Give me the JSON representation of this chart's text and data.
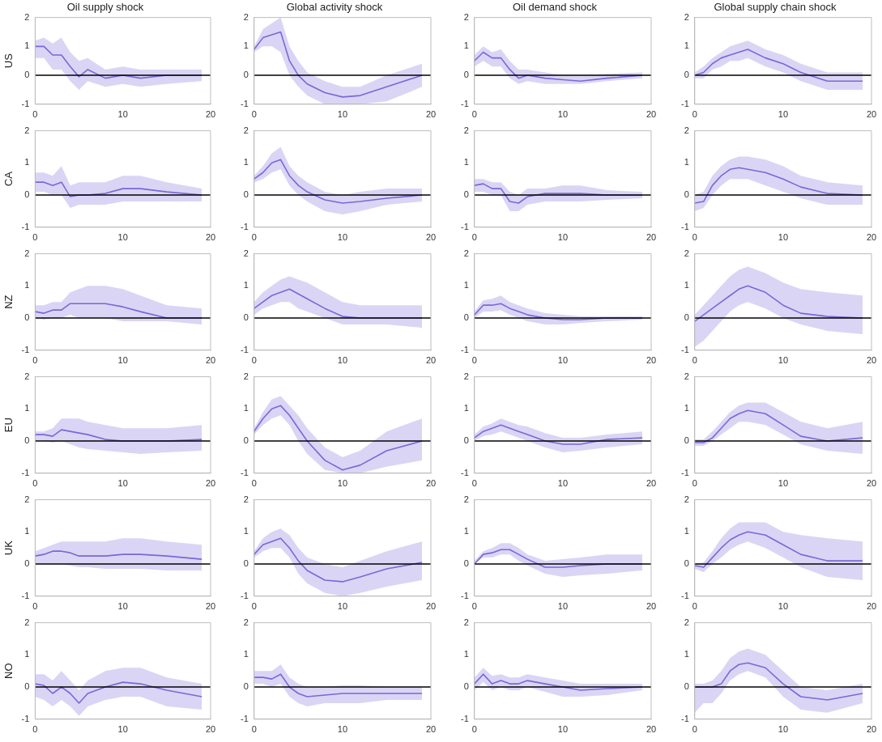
{
  "chart_data": [
    {
      "type": "line",
      "title": "Oil supply shock",
      "ylabel": "US",
      "x": [
        0,
        1,
        2,
        3,
        4,
        5,
        6,
        8,
        10,
        12,
        15,
        19
      ],
      "xlim": [
        0,
        20
      ],
      "ylim": [
        -1,
        2
      ],
      "xticks": [
        0,
        10,
        20
      ],
      "yticks": [
        -1,
        0,
        1,
        2
      ],
      "grid": false,
      "legend": false,
      "marker": "none",
      "ref_lines": [
        {
          "axis": "y",
          "value": 0,
          "color": "#000000"
        }
      ],
      "series": [
        {
          "color": "#7b68d8",
          "values": [
            1,
            1,
            0.7,
            0.7,
            0.3,
            -0.05,
            0.2,
            -0.1,
            0,
            -0.1,
            0,
            0
          ],
          "lower": [
            0.6,
            0.6,
            0.2,
            0.2,
            -0.2,
            -0.5,
            -0.2,
            -0.4,
            -0.3,
            -0.4,
            -0.3,
            -0.2
          ],
          "upper": [
            1.2,
            1.3,
            1.1,
            1.3,
            0.8,
            0.5,
            0.6,
            0.2,
            0.3,
            0.2,
            0.2,
            0.2
          ]
        }
      ]
    },
    {
      "type": "line",
      "title": "Global activity shock",
      "x": [
        0,
        1,
        2,
        3,
        4,
        5,
        6,
        8,
        10,
        12,
        15,
        19
      ],
      "xlim": [
        0,
        20
      ],
      "ylim": [
        -1,
        2
      ],
      "xticks": [
        0,
        10,
        20
      ],
      "yticks": [
        -1,
        0,
        1,
        2
      ],
      "grid": false,
      "legend": false,
      "marker": "none",
      "ref_lines": [
        {
          "axis": "y",
          "value": 0,
          "color": "#000000"
        }
      ],
      "series": [
        {
          "color": "#7b68d8",
          "values": [
            0.9,
            1.3,
            1.4,
            1.5,
            0.5,
            0,
            -0.3,
            -0.6,
            -0.75,
            -0.7,
            -0.4,
            0
          ],
          "lower": [
            0.8,
            1,
            1,
            0.8,
            0,
            -0.4,
            -0.7,
            -1,
            -1,
            -1,
            -0.9,
            -0.4
          ],
          "upper": [
            1,
            1.6,
            1.8,
            2,
            1,
            0.5,
            0.1,
            -0.2,
            -0.4,
            -0.4,
            0,
            0.4
          ]
        }
      ]
    },
    {
      "type": "line",
      "title": "Oil demand shock",
      "x": [
        0,
        1,
        2,
        3,
        4,
        5,
        6,
        8,
        10,
        12,
        15,
        19
      ],
      "xlim": [
        0,
        20
      ],
      "ylim": [
        -1,
        2
      ],
      "xticks": [
        0,
        10,
        20
      ],
      "yticks": [
        -1,
        0,
        1,
        2
      ],
      "grid": false,
      "legend": false,
      "marker": "none",
      "ref_lines": [
        {
          "axis": "y",
          "value": 0,
          "color": "#000000"
        }
      ],
      "series": [
        {
          "color": "#7b68d8",
          "values": [
            0.5,
            0.8,
            0.6,
            0.6,
            0.2,
            -0.1,
            0,
            -0.1,
            -0.15,
            -0.2,
            -0.1,
            0
          ],
          "lower": [
            0.3,
            0.5,
            0.3,
            0.3,
            -0.1,
            -0.3,
            -0.2,
            -0.3,
            -0.3,
            -0.3,
            -0.2,
            -0.1
          ],
          "upper": [
            0.7,
            1,
            0.8,
            0.9,
            0.5,
            0.2,
            0.2,
            0.1,
            0,
            0,
            0.05,
            0.1
          ]
        }
      ]
    },
    {
      "type": "line",
      "title": "Global supply chain shock",
      "x": [
        0,
        1,
        2,
        3,
        4,
        5,
        6,
        8,
        10,
        12,
        15,
        19
      ],
      "xlim": [
        0,
        20
      ],
      "ylim": [
        -1,
        2
      ],
      "xticks": [
        0,
        10,
        20
      ],
      "yticks": [
        -1,
        0,
        1,
        2
      ],
      "grid": false,
      "legend": false,
      "marker": "none",
      "ref_lines": [
        {
          "axis": "y",
          "value": 0,
          "color": "#000000"
        }
      ],
      "series": [
        {
          "color": "#7b68d8",
          "values": [
            0,
            0.1,
            0.4,
            0.6,
            0.7,
            0.8,
            0.9,
            0.6,
            0.4,
            0.1,
            -0.2,
            -0.2
          ],
          "lower": [
            -0.1,
            -0.1,
            0.2,
            0.3,
            0.5,
            0.5,
            0.6,
            0.3,
            0.1,
            -0.2,
            -0.5,
            -0.5
          ],
          "upper": [
            0.1,
            0.3,
            0.6,
            0.8,
            1,
            1.1,
            1.2,
            0.9,
            0.7,
            0.4,
            0.1,
            0.1
          ]
        }
      ]
    },
    {
      "type": "line",
      "ylabel": "CA",
      "x": [
        0,
        1,
        2,
        3,
        4,
        5,
        6,
        8,
        10,
        12,
        15,
        19
      ],
      "xlim": [
        0,
        20
      ],
      "ylim": [
        -1,
        2
      ],
      "xticks": [
        0,
        10,
        20
      ],
      "yticks": [
        -1,
        0,
        1,
        2
      ],
      "grid": false,
      "legend": false,
      "marker": "none",
      "ref_lines": [
        {
          "axis": "y",
          "value": 0,
          "color": "#000000"
        }
      ],
      "series": [
        {
          "color": "#7b68d8",
          "values": [
            0.4,
            0.4,
            0.3,
            0.4,
            -0.05,
            0,
            0,
            0.05,
            0.2,
            0.2,
            0.1,
            0
          ],
          "lower": [
            0.1,
            0.1,
            0,
            0,
            -0.4,
            -0.3,
            -0.3,
            -0.3,
            -0.2,
            -0.2,
            -0.2,
            -0.2
          ],
          "upper": [
            0.7,
            0.7,
            0.6,
            0.9,
            0.3,
            0.4,
            0.4,
            0.4,
            0.6,
            0.6,
            0.4,
            0.2
          ]
        }
      ]
    },
    {
      "type": "line",
      "x": [
        0,
        1,
        2,
        3,
        4,
        5,
        6,
        8,
        10,
        12,
        15,
        19
      ],
      "xlim": [
        0,
        20
      ],
      "ylim": [
        -1,
        2
      ],
      "xticks": [
        0,
        10,
        20
      ],
      "yticks": [
        -1,
        0,
        1,
        2
      ],
      "grid": false,
      "legend": false,
      "marker": "none",
      "ref_lines": [
        {
          "axis": "y",
          "value": 0,
          "color": "#000000"
        }
      ],
      "series": [
        {
          "color": "#7b68d8",
          "values": [
            0.5,
            0.7,
            1,
            1.1,
            0.6,
            0.3,
            0.1,
            -0.15,
            -0.25,
            -0.2,
            -0.1,
            0
          ],
          "lower": [
            0.4,
            0.5,
            0.7,
            0.8,
            0.3,
            0,
            -0.2,
            -0.5,
            -0.6,
            -0.5,
            -0.3,
            -0.2
          ],
          "upper": [
            0.6,
            0.9,
            1.3,
            1.5,
            0.9,
            0.6,
            0.4,
            0.1,
            0,
            0.1,
            0.2,
            0.2
          ]
        }
      ]
    },
    {
      "type": "line",
      "x": [
        0,
        1,
        2,
        3,
        4,
        5,
        6,
        8,
        10,
        12,
        15,
        19
      ],
      "xlim": [
        0,
        20
      ],
      "ylim": [
        -1,
        2
      ],
      "xticks": [
        0,
        10,
        20
      ],
      "yticks": [
        -1,
        0,
        1,
        2
      ],
      "grid": false,
      "legend": false,
      "marker": "none",
      "ref_lines": [
        {
          "axis": "y",
          "value": 0,
          "color": "#000000"
        }
      ],
      "series": [
        {
          "color": "#7b68d8",
          "values": [
            0.3,
            0.35,
            0.2,
            0.2,
            -0.2,
            -0.25,
            -0.05,
            0.05,
            0.05,
            0.05,
            0,
            0
          ],
          "lower": [
            0.1,
            0.1,
            0,
            0,
            -0.5,
            -0.5,
            -0.3,
            -0.2,
            -0.2,
            -0.2,
            -0.15,
            -0.1
          ],
          "upper": [
            0.5,
            0.5,
            0.4,
            0.4,
            0.1,
            0,
            0.2,
            0.2,
            0.3,
            0.3,
            0.15,
            0.1
          ]
        }
      ]
    },
    {
      "type": "line",
      "x": [
        0,
        1,
        2,
        3,
        4,
        5,
        6,
        8,
        10,
        12,
        15,
        19
      ],
      "xlim": [
        0,
        20
      ],
      "ylim": [
        -1,
        2
      ],
      "xticks": [
        0,
        10,
        20
      ],
      "yticks": [
        -1,
        0,
        1,
        2
      ],
      "grid": false,
      "legend": false,
      "marker": "none",
      "ref_lines": [
        {
          "axis": "y",
          "value": 0,
          "color": "#000000"
        }
      ],
      "series": [
        {
          "color": "#7b68d8",
          "values": [
            -0.25,
            -0.2,
            0.3,
            0.6,
            0.8,
            0.85,
            0.8,
            0.7,
            0.5,
            0.25,
            0.05,
            0
          ],
          "lower": [
            -0.5,
            -0.4,
            0,
            0.3,
            0.5,
            0.5,
            0.5,
            0.3,
            0.1,
            -0.1,
            -0.3,
            -0.3
          ],
          "upper": [
            0,
            0.1,
            0.6,
            0.9,
            1.1,
            1.2,
            1.2,
            1.1,
            0.9,
            0.6,
            0.4,
            0.3
          ]
        }
      ]
    },
    {
      "type": "line",
      "ylabel": "NZ",
      "x": [
        0,
        1,
        2,
        3,
        4,
        5,
        6,
        8,
        10,
        12,
        15,
        19
      ],
      "xlim": [
        0,
        20
      ],
      "ylim": [
        -1,
        2
      ],
      "xticks": [
        0,
        10,
        20
      ],
      "yticks": [
        -1,
        0,
        1,
        2
      ],
      "grid": false,
      "legend": false,
      "marker": "none",
      "ref_lines": [
        {
          "axis": "y",
          "value": 0,
          "color": "#000000"
        }
      ],
      "series": [
        {
          "color": "#7b68d8",
          "values": [
            0.2,
            0.15,
            0.25,
            0.25,
            0.45,
            0.45,
            0.45,
            0.45,
            0.35,
            0.2,
            0,
            0
          ],
          "lower": [
            0,
            -0.05,
            0,
            0,
            0.1,
            0,
            0,
            0,
            -0.1,
            -0.1,
            -0.1,
            -0.2
          ],
          "upper": [
            0.4,
            0.4,
            0.5,
            0.5,
            0.8,
            0.9,
            1,
            1,
            0.9,
            0.7,
            0.4,
            0.3
          ]
        }
      ]
    },
    {
      "type": "line",
      "x": [
        0,
        1,
        2,
        3,
        4,
        5,
        6,
        8,
        10,
        12,
        15,
        19
      ],
      "xlim": [
        0,
        20
      ],
      "ylim": [
        -1,
        2
      ],
      "xticks": [
        0,
        10,
        20
      ],
      "yticks": [
        -1,
        0,
        1,
        2
      ],
      "grid": false,
      "legend": false,
      "marker": "none",
      "ref_lines": [
        {
          "axis": "y",
          "value": 0,
          "color": "#000000"
        }
      ],
      "series": [
        {
          "color": "#7b68d8",
          "values": [
            0.3,
            0.5,
            0.7,
            0.8,
            0.9,
            0.75,
            0.6,
            0.3,
            0.05,
            0,
            0,
            0
          ],
          "lower": [
            0.1,
            0.3,
            0.4,
            0.5,
            0.5,
            0.3,
            0.2,
            0,
            -0.2,
            -0.2,
            -0.2,
            -0.3
          ],
          "upper": [
            0.5,
            0.8,
            1,
            1.2,
            1.3,
            1.2,
            1.1,
            0.8,
            0.5,
            0.4,
            0.4,
            0.4
          ]
        }
      ]
    },
    {
      "type": "line",
      "x": [
        0,
        1,
        2,
        3,
        4,
        5,
        6,
        8,
        10,
        12,
        15,
        19
      ],
      "xlim": [
        0,
        20
      ],
      "ylim": [
        -1,
        2
      ],
      "xticks": [
        0,
        10,
        20
      ],
      "yticks": [
        -1,
        0,
        1,
        2
      ],
      "grid": false,
      "legend": false,
      "marker": "none",
      "ref_lines": [
        {
          "axis": "y",
          "value": 0,
          "color": "#000000"
        }
      ],
      "series": [
        {
          "color": "#7b68d8",
          "values": [
            0.1,
            0.4,
            0.4,
            0.45,
            0.3,
            0.2,
            0.1,
            0,
            -0.05,
            -0.05,
            0,
            0
          ],
          "lower": [
            0,
            0.2,
            0.2,
            0.25,
            0.1,
            0,
            -0.1,
            -0.2,
            -0.2,
            -0.15,
            -0.1,
            -0.05
          ],
          "upper": [
            0.2,
            0.55,
            0.6,
            0.7,
            0.5,
            0.4,
            0.3,
            0.15,
            0.1,
            0.05,
            0.05,
            0.05
          ]
        }
      ]
    },
    {
      "type": "line",
      "x": [
        0,
        1,
        2,
        3,
        4,
        5,
        6,
        8,
        10,
        12,
        15,
        19
      ],
      "xlim": [
        0,
        20
      ],
      "ylim": [
        -1,
        2
      ],
      "xticks": [
        0,
        10,
        20
      ],
      "yticks": [
        -1,
        0,
        1,
        2
      ],
      "grid": false,
      "legend": false,
      "marker": "none",
      "ref_lines": [
        {
          "axis": "y",
          "value": 0,
          "color": "#000000"
        }
      ],
      "series": [
        {
          "color": "#7b68d8",
          "values": [
            -0.1,
            0.1,
            0.3,
            0.5,
            0.7,
            0.9,
            1,
            0.8,
            0.4,
            0.15,
            0.05,
            0
          ],
          "lower": [
            -0.9,
            -0.7,
            -0.4,
            -0.1,
            0.2,
            0.4,
            0.5,
            0.3,
            0,
            -0.2,
            -0.4,
            -0.5
          ],
          "upper": [
            0.1,
            0.4,
            0.7,
            1,
            1.3,
            1.5,
            1.6,
            1.4,
            1.1,
            0.9,
            0.8,
            0.7
          ]
        }
      ]
    },
    {
      "type": "line",
      "ylabel": "EU",
      "x": [
        0,
        1,
        2,
        3,
        4,
        5,
        6,
        8,
        10,
        12,
        15,
        19
      ],
      "xlim": [
        0,
        20
      ],
      "ylim": [
        -1,
        2
      ],
      "xticks": [
        0,
        10,
        20
      ],
      "yticks": [
        -1,
        0,
        1,
        2
      ],
      "grid": false,
      "legend": false,
      "marker": "none",
      "ref_lines": [
        {
          "axis": "y",
          "value": 0,
          "color": "#000000"
        }
      ],
      "series": [
        {
          "color": "#7b68d8",
          "values": [
            0.2,
            0.2,
            0.15,
            0.35,
            0.3,
            0.25,
            0.2,
            0.05,
            0,
            0,
            0,
            0.05
          ],
          "lower": [
            0,
            0,
            -0.05,
            0,
            -0.1,
            -0.2,
            -0.25,
            -0.3,
            -0.35,
            -0.4,
            -0.35,
            -0.3
          ],
          "upper": [
            0.3,
            0.3,
            0.4,
            0.7,
            0.7,
            0.7,
            0.6,
            0.5,
            0.4,
            0.4,
            0.4,
            0.5
          ]
        }
      ]
    },
    {
      "type": "line",
      "x": [
        0,
        1,
        2,
        3,
        4,
        5,
        6,
        8,
        10,
        12,
        15,
        19
      ],
      "xlim": [
        0,
        20
      ],
      "ylim": [
        -1,
        2
      ],
      "xticks": [
        0,
        10,
        20
      ],
      "yticks": [
        -1,
        0,
        1,
        2
      ],
      "grid": false,
      "legend": false,
      "marker": "none",
      "ref_lines": [
        {
          "axis": "y",
          "value": 0,
          "color": "#000000"
        }
      ],
      "series": [
        {
          "color": "#7b68d8",
          "values": [
            0.3,
            0.7,
            1,
            1.1,
            0.8,
            0.4,
            0,
            -0.6,
            -0.9,
            -0.75,
            -0.3,
            0
          ],
          "lower": [
            0.2,
            0.5,
            0.7,
            0.8,
            0.5,
            0,
            -0.4,
            -0.9,
            -1,
            -1,
            -0.8,
            -0.6
          ],
          "upper": [
            0.4,
            0.9,
            1.3,
            1.4,
            1.1,
            0.8,
            0.4,
            -0.2,
            -0.5,
            -0.3,
            0.3,
            0.7
          ]
        }
      ]
    },
    {
      "type": "line",
      "x": [
        0,
        1,
        2,
        3,
        4,
        5,
        6,
        8,
        10,
        12,
        15,
        19
      ],
      "xlim": [
        0,
        20
      ],
      "ylim": [
        -1,
        2
      ],
      "xticks": [
        0,
        10,
        20
      ],
      "yticks": [
        -1,
        0,
        1,
        2
      ],
      "grid": false,
      "legend": false,
      "marker": "none",
      "ref_lines": [
        {
          "axis": "y",
          "value": 0,
          "color": "#000000"
        }
      ],
      "series": [
        {
          "color": "#7b68d8",
          "values": [
            0.1,
            0.3,
            0.4,
            0.5,
            0.4,
            0.3,
            0.2,
            0,
            -0.1,
            -0.1,
            0.05,
            0.1
          ],
          "lower": [
            0,
            0.15,
            0.2,
            0.3,
            0.2,
            0.1,
            0,
            -0.2,
            -0.35,
            -0.3,
            -0.2,
            -0.1
          ],
          "upper": [
            0.2,
            0.45,
            0.55,
            0.7,
            0.6,
            0.5,
            0.45,
            0.25,
            0.1,
            0.1,
            0.2,
            0.3
          ]
        }
      ]
    },
    {
      "type": "line",
      "x": [
        0,
        1,
        2,
        3,
        4,
        5,
        6,
        8,
        10,
        12,
        15,
        19
      ],
      "xlim": [
        0,
        20
      ],
      "ylim": [
        -1,
        2
      ],
      "xticks": [
        0,
        10,
        20
      ],
      "yticks": [
        -1,
        0,
        1,
        2
      ],
      "grid": false,
      "legend": false,
      "marker": "none",
      "ref_lines": [
        {
          "axis": "y",
          "value": 0,
          "color": "#000000"
        }
      ],
      "series": [
        {
          "color": "#7b68d8",
          "values": [
            -0.05,
            -0.05,
            0.1,
            0.4,
            0.7,
            0.85,
            0.95,
            0.85,
            0.5,
            0.15,
            0,
            0.1
          ],
          "lower": [
            -0.15,
            -0.15,
            0,
            0.2,
            0.4,
            0.6,
            0.6,
            0.5,
            0.2,
            -0.1,
            -0.3,
            -0.4
          ],
          "upper": [
            0.05,
            0.05,
            0.3,
            0.6,
            0.9,
            1.1,
            1.2,
            1.2,
            0.9,
            0.6,
            0.4,
            0.6
          ]
        }
      ]
    },
    {
      "type": "line",
      "ylabel": "UK",
      "x": [
        0,
        1,
        2,
        3,
        4,
        5,
        6,
        8,
        10,
        12,
        15,
        19
      ],
      "xlim": [
        0,
        20
      ],
      "ylim": [
        -1,
        2
      ],
      "xticks": [
        0,
        10,
        20
      ],
      "yticks": [
        -1,
        0,
        1,
        2
      ],
      "grid": false,
      "legend": false,
      "marker": "none",
      "ref_lines": [
        {
          "axis": "y",
          "value": 0,
          "color": "#000000"
        }
      ],
      "series": [
        {
          "color": "#7b68d8",
          "values": [
            0.25,
            0.3,
            0.4,
            0.4,
            0.35,
            0.25,
            0.25,
            0.25,
            0.3,
            0.3,
            0.25,
            0.15
          ],
          "lower": [
            0,
            0,
            0,
            0,
            -0.05,
            -0.1,
            -0.1,
            -0.15,
            -0.15,
            -0.15,
            -0.2,
            -0.2
          ],
          "upper": [
            0.4,
            0.5,
            0.6,
            0.7,
            0.7,
            0.7,
            0.7,
            0.7,
            0.8,
            0.8,
            0.7,
            0.6
          ]
        }
      ]
    },
    {
      "type": "line",
      "x": [
        0,
        1,
        2,
        3,
        4,
        5,
        6,
        8,
        10,
        12,
        15,
        19
      ],
      "xlim": [
        0,
        20
      ],
      "ylim": [
        -1,
        2
      ],
      "xticks": [
        0,
        10,
        20
      ],
      "yticks": [
        -1,
        0,
        1,
        2
      ],
      "grid": false,
      "legend": false,
      "marker": "none",
      "ref_lines": [
        {
          "axis": "y",
          "value": 0,
          "color": "#000000"
        }
      ],
      "series": [
        {
          "color": "#7b68d8",
          "values": [
            0.3,
            0.6,
            0.7,
            0.8,
            0.5,
            0.1,
            -0.2,
            -0.5,
            -0.55,
            -0.4,
            -0.15,
            0.05
          ],
          "lower": [
            0.2,
            0.4,
            0.5,
            0.5,
            0.2,
            -0.3,
            -0.6,
            -0.9,
            -1,
            -0.9,
            -0.7,
            -0.5
          ],
          "upper": [
            0.4,
            0.8,
            1,
            1.1,
            0.9,
            0.5,
            0.2,
            0,
            -0.1,
            0.1,
            0.4,
            0.7
          ]
        }
      ]
    },
    {
      "type": "line",
      "x": [
        0,
        1,
        2,
        3,
        4,
        5,
        6,
        8,
        10,
        12,
        15,
        19
      ],
      "xlim": [
        0,
        20
      ],
      "ylim": [
        -1,
        2
      ],
      "xticks": [
        0,
        10,
        20
      ],
      "yticks": [
        -1,
        0,
        1,
        2
      ],
      "grid": false,
      "legend": false,
      "marker": "none",
      "ref_lines": [
        {
          "axis": "y",
          "value": 0,
          "color": "#000000"
        }
      ],
      "series": [
        {
          "color": "#7b68d8",
          "values": [
            0,
            0.3,
            0.35,
            0.45,
            0.45,
            0.3,
            0.15,
            -0.1,
            -0.1,
            -0.05,
            0,
            0
          ],
          "lower": [
            0,
            0.2,
            0.2,
            0.3,
            0.3,
            0.1,
            -0.05,
            -0.3,
            -0.4,
            -0.35,
            -0.3,
            -0.2
          ],
          "upper": [
            0.1,
            0.4,
            0.5,
            0.65,
            0.65,
            0.5,
            0.3,
            0.1,
            0.15,
            0.2,
            0.3,
            0.3
          ]
        }
      ]
    },
    {
      "type": "line",
      "x": [
        0,
        1,
        2,
        3,
        4,
        5,
        6,
        8,
        10,
        12,
        15,
        19
      ],
      "xlim": [
        0,
        20
      ],
      "ylim": [
        -1,
        2
      ],
      "xticks": [
        0,
        10,
        20
      ],
      "yticks": [
        -1,
        0,
        1,
        2
      ],
      "grid": false,
      "legend": false,
      "marker": "none",
      "ref_lines": [
        {
          "axis": "y",
          "value": 0,
          "color": "#000000"
        }
      ],
      "series": [
        {
          "color": "#7b68d8",
          "values": [
            -0.05,
            -0.1,
            0.2,
            0.5,
            0.75,
            0.9,
            1,
            0.9,
            0.6,
            0.3,
            0.1,
            0.1
          ],
          "lower": [
            -0.15,
            -0.25,
            0,
            0.2,
            0.45,
            0.6,
            0.7,
            0.5,
            0.2,
            -0.1,
            -0.4,
            -0.5
          ],
          "upper": [
            0,
            0.05,
            0.4,
            0.8,
            1.1,
            1.3,
            1.3,
            1.3,
            1,
            0.9,
            0.8,
            0.7
          ]
        }
      ]
    },
    {
      "type": "line",
      "ylabel": "NO",
      "x": [
        0,
        1,
        2,
        3,
        4,
        5,
        6,
        8,
        10,
        12,
        15,
        19
      ],
      "xlim": [
        0,
        20
      ],
      "ylim": [
        -1,
        2
      ],
      "xticks": [
        0,
        10,
        20
      ],
      "yticks": [
        -1,
        0,
        1,
        2
      ],
      "grid": false,
      "legend": false,
      "marker": "none",
      "ref_lines": [
        {
          "axis": "y",
          "value": 0,
          "color": "#000000"
        }
      ],
      "series": [
        {
          "color": "#7b68d8",
          "values": [
            0.1,
            0.05,
            -0.2,
            0,
            -0.2,
            -0.5,
            -0.2,
            0,
            0.15,
            0.1,
            -0.1,
            -0.3
          ],
          "lower": [
            -0.3,
            -0.4,
            -0.6,
            -0.4,
            -0.6,
            -0.9,
            -0.6,
            -0.4,
            -0.3,
            -0.3,
            -0.6,
            -0.7
          ],
          "upper": [
            0.4,
            0.4,
            0.2,
            0.5,
            0.2,
            -0.1,
            0.2,
            0.5,
            0.6,
            0.6,
            0.3,
            0.1
          ]
        }
      ]
    },
    {
      "type": "line",
      "x": [
        0,
        1,
        2,
        3,
        4,
        5,
        6,
        8,
        10,
        12,
        15,
        19
      ],
      "xlim": [
        0,
        20
      ],
      "ylim": [
        -1,
        2
      ],
      "xticks": [
        0,
        10,
        20
      ],
      "yticks": [
        -1,
        0,
        1,
        2
      ],
      "grid": false,
      "legend": false,
      "marker": "none",
      "ref_lines": [
        {
          "axis": "y",
          "value": 0,
          "color": "#000000"
        }
      ],
      "series": [
        {
          "color": "#7b68d8",
          "values": [
            0.3,
            0.3,
            0.25,
            0.4,
            0,
            -0.2,
            -0.3,
            -0.25,
            -0.2,
            -0.2,
            -0.2,
            -0.2
          ],
          "lower": [
            0.1,
            0.1,
            0,
            0.1,
            -0.3,
            -0.5,
            -0.6,
            -0.5,
            -0.5,
            -0.5,
            -0.4,
            -0.4
          ],
          "upper": [
            0.5,
            0.5,
            0.5,
            0.7,
            0.3,
            0.1,
            0,
            0,
            0.05,
            0.05,
            0,
            0
          ]
        }
      ]
    },
    {
      "type": "line",
      "x": [
        0,
        1,
        2,
        3,
        4,
        5,
        6,
        8,
        10,
        12,
        15,
        19
      ],
      "xlim": [
        0,
        20
      ],
      "ylim": [
        -1,
        2
      ],
      "xticks": [
        0,
        10,
        20
      ],
      "yticks": [
        -1,
        0,
        1,
        2
      ],
      "grid": false,
      "legend": false,
      "marker": "none",
      "ref_lines": [
        {
          "axis": "y",
          "value": 0,
          "color": "#000000"
        }
      ],
      "series": [
        {
          "color": "#7b68d8",
          "values": [
            0.1,
            0.4,
            0.1,
            0.2,
            0.1,
            0.1,
            0.2,
            0.1,
            0,
            -0.1,
            -0.05,
            0
          ],
          "lower": [
            -0.1,
            0.15,
            -0.1,
            0,
            -0.1,
            -0.1,
            0,
            -0.15,
            -0.3,
            -0.3,
            -0.25,
            -0.1
          ],
          "upper": [
            0.3,
            0.6,
            0.35,
            0.4,
            0.3,
            0.3,
            0.4,
            0.3,
            0.2,
            0.1,
            0.1,
            0.1
          ]
        }
      ]
    },
    {
      "type": "line",
      "x": [
        0,
        1,
        2,
        3,
        4,
        5,
        6,
        8,
        10,
        12,
        15,
        19
      ],
      "xlim": [
        0,
        20
      ],
      "ylim": [
        -1,
        2
      ],
      "xticks": [
        0,
        10,
        20
      ],
      "yticks": [
        -1,
        0,
        1,
        2
      ],
      "grid": false,
      "legend": false,
      "marker": "none",
      "ref_lines": [
        {
          "axis": "y",
          "value": 0,
          "color": "#000000"
        }
      ],
      "series": [
        {
          "color": "#7b68d8",
          "values": [
            0,
            0,
            0,
            0.1,
            0.5,
            0.7,
            0.75,
            0.6,
            0.1,
            -0.3,
            -0.4,
            -0.2
          ],
          "lower": [
            -0.8,
            -0.5,
            -0.5,
            -0.2,
            0.2,
            0.4,
            0.5,
            0.3,
            -0.3,
            -0.7,
            -0.8,
            -0.5
          ],
          "upper": [
            0.1,
            0.1,
            0.2,
            0.5,
            0.9,
            1.1,
            1.2,
            1,
            0.5,
            0,
            -0.1,
            0.1
          ]
        }
      ]
    }
  ]
}
